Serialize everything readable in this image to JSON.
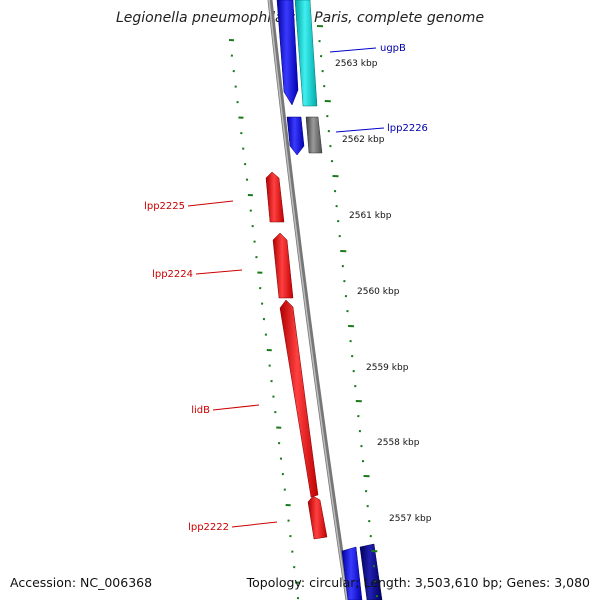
{
  "title": "Legionella pneumophila str. Paris, complete genome",
  "footer": {
    "accession": "Accession: NC_006368",
    "summary": "Topology: circular; Length: 3,503,610 bp; Genes: 3,080"
  },
  "colors": {
    "backbone": "#8a8a8a",
    "forward_gene": "#e60000",
    "reverse_gene_blue": "#0000e0",
    "reverse_gene_cyan": "#00c8c8",
    "reverse_gene_grey": "#606060",
    "reverse_gene_navy": "#00007a",
    "tick": "#1a7a1a",
    "forward_label": "#cc0000",
    "reverse_label": "#0000aa"
  },
  "scale_ticks": [
    "2563 kbp",
    "2562 kbp",
    "2561 kbp",
    "2560 kbp",
    "2559 kbp",
    "2558 kbp",
    "2557 kbp"
  ],
  "genes": [
    {
      "id": "ugpB",
      "label": "ugpB",
      "strand": "reverse"
    },
    {
      "id": "lpp2226",
      "label": "lpp2226",
      "strand": "reverse"
    },
    {
      "id": "lpp2225",
      "label": "lpp2225",
      "strand": "forward"
    },
    {
      "id": "lpp2224",
      "label": "lpp2224",
      "strand": "forward"
    },
    {
      "id": "lidB",
      "label": "lidB",
      "strand": "forward"
    },
    {
      "id": "lpp2222",
      "label": "lpp2222",
      "strand": "forward"
    }
  ]
}
